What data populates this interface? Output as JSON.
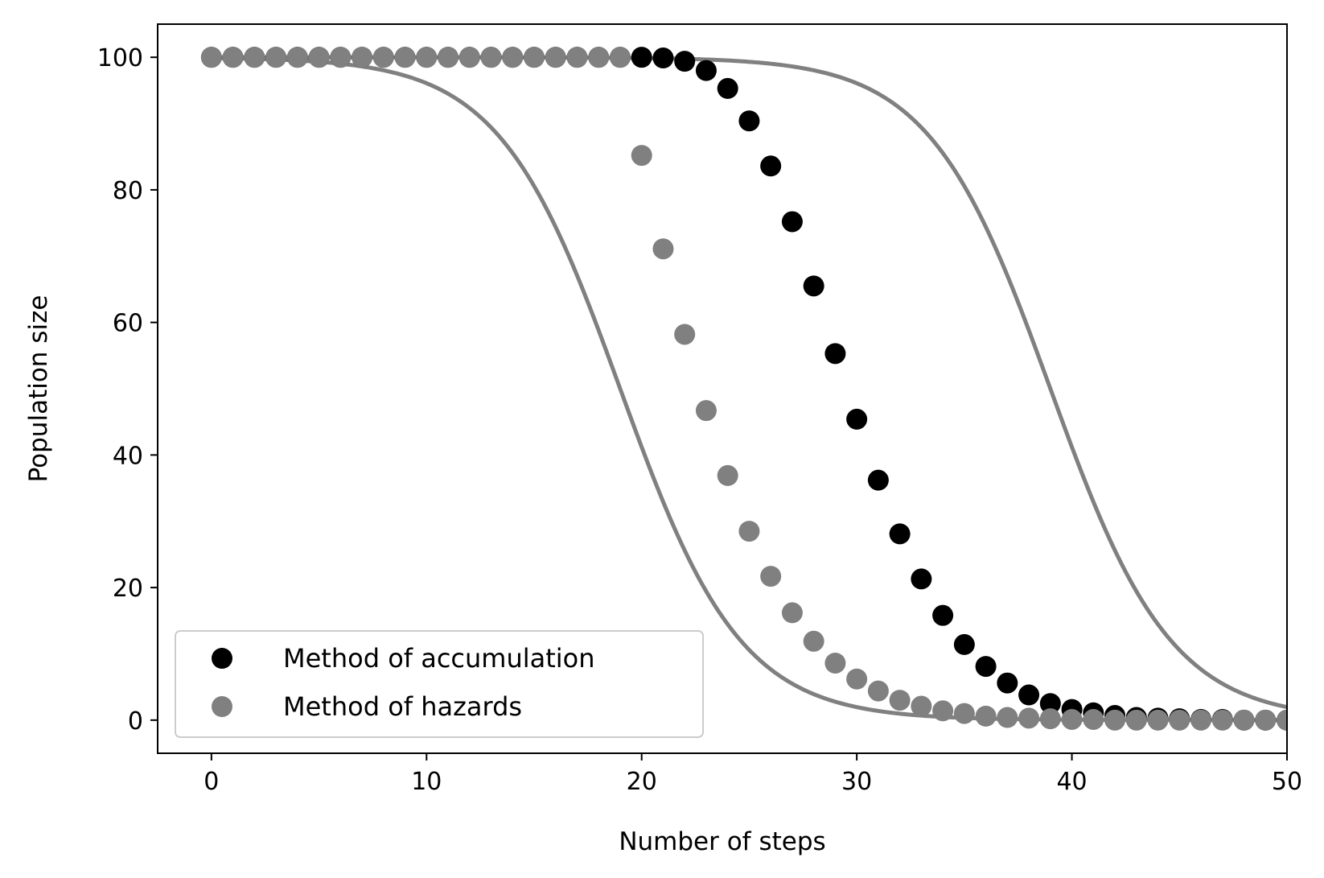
{
  "chart_data": {
    "type": "scatter",
    "xlabel": "Number of steps",
    "ylabel": "Population size",
    "xlim": [
      -2.5,
      50
    ],
    "ylim": [
      -5,
      105
    ],
    "xticks": [
      0,
      10,
      20,
      30,
      40,
      50
    ],
    "yticks": [
      0,
      20,
      40,
      60,
      80,
      100
    ],
    "grid": false,
    "legend_position": "lower-left",
    "series": [
      {
        "name": "Method of accumulation",
        "kind": "points",
        "color": "#000000",
        "x": [
          0,
          1,
          2,
          3,
          4,
          5,
          6,
          7,
          8,
          9,
          10,
          11,
          12,
          13,
          14,
          15,
          16,
          17,
          18,
          19,
          20,
          21,
          22,
          23,
          24,
          25,
          26,
          27,
          28,
          29,
          30,
          31,
          32,
          33,
          34,
          35,
          36,
          37,
          38,
          39,
          40,
          41,
          42,
          43,
          44,
          45,
          46,
          47,
          48,
          49,
          50
        ],
        "y": [
          100,
          100,
          100,
          100,
          100,
          100,
          100,
          100,
          100,
          100,
          100,
          100,
          100,
          100,
          100,
          100,
          100,
          100,
          100,
          100,
          100,
          99.9,
          99.4,
          98,
          95.3,
          90.4,
          83.6,
          75.2,
          65.5,
          55.3,
          45.4,
          36.2,
          28.1,
          21.3,
          15.8,
          11.4,
          8.1,
          5.6,
          3.8,
          2.5,
          1.6,
          1.1,
          0.7,
          0.4,
          0.3,
          0.2,
          0.1,
          0.1,
          0,
          0,
          0
        ]
      },
      {
        "name": "Method of hazards",
        "kind": "points",
        "color": "#808080",
        "x": [
          0,
          1,
          2,
          3,
          4,
          5,
          6,
          7,
          8,
          9,
          10,
          11,
          12,
          13,
          14,
          15,
          16,
          17,
          18,
          19,
          20,
          21,
          22,
          23,
          24,
          25,
          26,
          27,
          28,
          29,
          30,
          31,
          32,
          33,
          34,
          35,
          36,
          37,
          38,
          39,
          40,
          41,
          42,
          43,
          44,
          45,
          46,
          47,
          48,
          49,
          50
        ],
        "y": [
          100,
          100,
          100,
          100,
          100,
          100,
          100,
          100,
          100,
          100,
          100,
          100,
          100,
          100,
          100,
          100,
          100,
          100,
          100,
          100,
          85.2,
          71.1,
          58.2,
          46.7,
          36.9,
          28.5,
          21.7,
          16.2,
          11.9,
          8.6,
          6.2,
          4.4,
          3,
          2.1,
          1.4,
          1,
          0.6,
          0.4,
          0.3,
          0.2,
          0.1,
          0.1,
          0,
          0,
          0,
          0,
          0,
          0,
          0,
          0,
          0
        ]
      },
      {
        "kind": "line",
        "color": "#808080",
        "center": 19,
        "spread": 4.5
      },
      {
        "kind": "line",
        "color": "#808080",
        "center": 39,
        "spread": 4.5
      }
    ]
  }
}
